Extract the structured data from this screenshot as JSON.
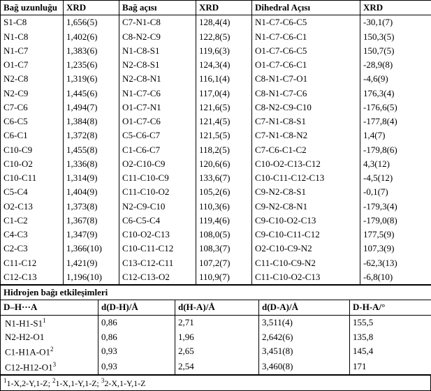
{
  "header": {
    "c0": "Bağ uzunluğu",
    "c1": "XRD",
    "c2": "Bağ açısı",
    "c3": "XRD",
    "c4": "Dihedral Açısı",
    "c5": "XRD"
  },
  "rows": [
    [
      "S1-C8",
      "1,656(5)",
      "C7-N1-C8",
      "128,4(4)",
      "N1-C7-C6-C5",
      "-30,1(7)"
    ],
    [
      "N1-C8",
      "1,402(6)",
      "C8-N2-C9",
      "122,8(5)",
      "N1-C7-C6-C1",
      "150,3(5)"
    ],
    [
      "N1-C7",
      "1,383(6)",
      "N1-C8-S1",
      "119,6(3)",
      "O1-C7-C6-C5",
      "150,7(5)"
    ],
    [
      "O1-C7",
      "1,235(6)",
      "N2-C8-S1",
      "124,3(4)",
      "O1-C7-C6-C1",
      "-28,9(8)"
    ],
    [
      "N2-C8",
      "1,319(6)",
      "N2-C8-N1",
      "116,1(4)",
      "C8-N1-C7-O1",
      "-4,6(9)"
    ],
    [
      "N2-C9",
      "1,445(6)",
      "N1-C7-C6",
      "117,0(4)",
      "C8-N1-C7-C6",
      "176,3(4)"
    ],
    [
      "C7-C6",
      "1,494(7)",
      "O1-C7-N1",
      "121,6(5)",
      "C8-N2-C9-C10",
      "-176,6(5)"
    ],
    [
      "C6-C5",
      "1,384(8)",
      "O1-C7-C6",
      "121,4(5)",
      "C7-N1-C8-S1",
      "-177,8(4)"
    ],
    [
      "C6-C1",
      "1,372(8)",
      "C5-C6-C7",
      "121,5(5)",
      "C7-N1-C8-N2",
      "1,4(7)"
    ],
    [
      "C10-C9",
      "1,455(8)",
      "C1-C6-C7",
      "118,2(5)",
      "C7-C6-C1-C2",
      "-179,8(6)"
    ],
    [
      "C10-O2",
      "1,336(8)",
      "O2-C10-C9",
      "120,6(6)",
      "C10-O2-C13-C12",
      "4,3(12)"
    ],
    [
      "C10-C11",
      "1,314(9)",
      "C11-C10-C9",
      "133,6(7)",
      "C10-C11-C12-C13",
      "-4,5(12)"
    ],
    [
      "C5-C4",
      "1,404(9)",
      "C11-C10-O2",
      "105,2(6)",
      "C9-N2-C8-S1",
      "-0,1(7)"
    ],
    [
      "O2-C13",
      "1,373(8)",
      "N2-C9-C10",
      "110,3(6)",
      "C9-N2-C8-N1",
      "-179,3(4)"
    ],
    [
      "C1-C2",
      "1,367(8)",
      "C6-C5-C4",
      "119,4(6)",
      "C9-C10-O2-C13",
      "-179,0(8)"
    ],
    [
      "C4-C3",
      "1,347(9)",
      "C10-O2-C13",
      "108,0(5)",
      "C9-C10-C11-C12",
      "177,5(9)"
    ],
    [
      "C2-C3",
      "1,366(10)",
      "C10-C11-C12",
      "108,3(7)",
      "O2-C10-C9-N2",
      "107,3(9)"
    ],
    [
      "C11-C12",
      "1,421(9)",
      "C13-C12-C11",
      "107,2(7)",
      "C11-C10-C9-N2",
      "-62,3(13)"
    ],
    [
      "C12-C13",
      "1,196(10)",
      "C12-C13-O2",
      "110,9(7)",
      "C11-C10-O2-C13",
      "-6,8(10)"
    ]
  ],
  "hbond_title": "Hidrojen bağı etkileşimleri",
  "hbond_header": {
    "c0": "D–H···A",
    "c1": "d(D-H)/Å",
    "c2": "d(H-A)/Å",
    "c3": "d(D-A)/Å",
    "c4": "D-H-A/°"
  },
  "hbond_rows": [
    {
      "c0_pre": "N1-H1-S1",
      "c0_sup": "1",
      "c1": "0,86",
      "c2": "2,71",
      "c3": "3,511(4)",
      "c4": "155,5"
    },
    {
      "c0_pre": "N2-H2-O1",
      "c0_sup": "",
      "c1": "0,86",
      "c2": "1,96",
      "c3": "2,642(6)",
      "c4": "135,8"
    },
    {
      "c0_pre": "C1-H1A-O1",
      "c0_sup": "2",
      "c1": "0,93",
      "c2": "2,65",
      "c3": "3,451(8)",
      "c4": "145,4"
    },
    {
      "c0_pre": "C12-H12-O1",
      "c0_sup": "3",
      "c1": "0,93",
      "c2": "2,54",
      "c3": "3,460(8)",
      "c4": "171"
    }
  ],
  "footnote_parts": {
    "s1": "1",
    "t1": "1-X,2-Y,1-Z; ",
    "s2": "2",
    "t2": "1-X,1-Y,1-Z; ",
    "s3": "3",
    "t3": "2-X,1-Y,1-Z"
  }
}
